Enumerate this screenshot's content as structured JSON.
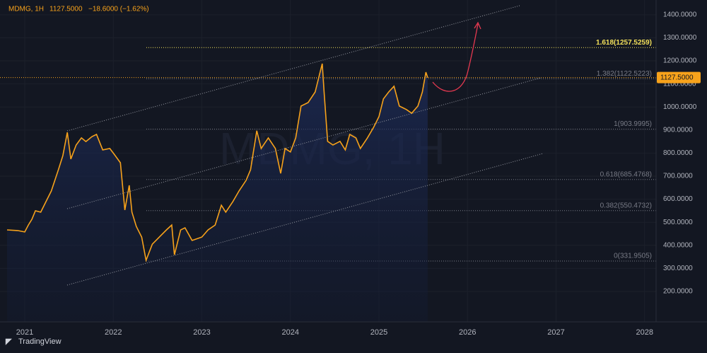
{
  "chart_data": {
    "type": "line",
    "header": {
      "symbol": "MDMG, 1H",
      "change": "−18.6000 (−1.62%)"
    },
    "watermark": "MDMG, 1H",
    "brand": "TradingView",
    "series": [
      {
        "name": "MDMG",
        "color": "#f7a21b",
        "x": [
          2020.8,
          2020.92,
          2021.0,
          2021.04,
          2021.08,
          2021.12,
          2021.18,
          2021.24,
          2021.3,
          2021.34,
          2021.38,
          2021.43,
          2021.48,
          2021.52,
          2021.58,
          2021.64,
          2021.69,
          2021.76,
          2021.81,
          2021.88,
          2021.96,
          2022.01,
          2022.08,
          2022.13,
          2022.18,
          2022.21,
          2022.26,
          2022.32,
          2022.37,
          2022.44,
          2022.52,
          2022.6,
          2022.66,
          2022.69,
          2022.76,
          2022.81,
          2022.89,
          2023.0,
          2023.07,
          2023.15,
          2023.22,
          2023.27,
          2023.35,
          2023.42,
          2023.5,
          2023.55,
          2023.62,
          2023.67,
          2023.75,
          2023.83,
          2023.89,
          2023.94,
          2024.0,
          2024.06,
          2024.12,
          2024.2,
          2024.28,
          2024.32,
          2024.36,
          2024.38,
          2024.42,
          2024.48,
          2024.56,
          2024.62,
          2024.67,
          2024.74,
          2024.79,
          2024.87,
          2024.94,
          2025.0,
          2025.05,
          2025.11,
          2025.17,
          2025.23,
          2025.31,
          2025.37,
          2025.44,
          2025.49,
          2025.53,
          2025.55
        ],
        "values": [
          467,
          464,
          458,
          488,
          513,
          550,
          544,
          590,
          636,
          682,
          728,
          789,
          890,
          774,
          835,
          866,
          850,
          872,
          881,
          814,
          820,
          795,
          758,
          553,
          660,
          544,
          482,
          436,
          335,
          405,
          436,
          467,
          488,
          359,
          467,
          476,
          421,
          436,
          467,
          488,
          574,
          544,
          590,
          636,
          682,
          728,
          897,
          820,
          866,
          820,
          712,
          820,
          805,
          866,
          1004,
          1019,
          1065,
          1127,
          1188,
          1065,
          851,
          835,
          851,
          814,
          881,
          866,
          820,
          866,
          912,
          958,
          1035,
          1065,
          1090,
          1004,
          989,
          973,
          1004,
          1065,
          1151,
          1127.5
        ]
      }
    ],
    "last_price": {
      "value": 1127.5,
      "label": "1127.5000"
    },
    "fib_levels": [
      {
        "value": 1257.5259,
        "label": "1.618(1257.5259)",
        "color": "#f2e05a"
      },
      {
        "value": 1122.5223,
        "label": "1.382(1122.5223)",
        "color": "#787b86"
      },
      {
        "value": 903.9995,
        "label": "1(903.9995)",
        "color": "#787b86"
      },
      {
        "value": 685.4768,
        "label": "0.618(685.4768)",
        "color": "#787b86"
      },
      {
        "value": 550.4732,
        "label": "0.382(550.4732)",
        "color": "#787b86"
      },
      {
        "value": 331.9505,
        "label": "0(331.9505)",
        "color": "#787b86"
      }
    ],
    "xlim": [
      2020.8,
      2028.13
    ],
    "xticks": [
      2021,
      2022,
      2023,
      2024,
      2025,
      2026,
      2027,
      2028
    ],
    "ylim": [
      68,
      1464
    ],
    "yticks": [
      {
        "value": 200,
        "label": "200.0000"
      },
      {
        "value": 300,
        "label": "300.0000"
      },
      {
        "value": 400,
        "label": "400.0000"
      },
      {
        "value": 500,
        "label": "500.0000"
      },
      {
        "value": 600,
        "label": "600.0000"
      },
      {
        "value": 700,
        "label": "700.0000"
      },
      {
        "value": 800,
        "label": "800.0000"
      },
      {
        "value": 900,
        "label": "900.0000"
      },
      {
        "value": 1000,
        "label": "1000.0000"
      },
      {
        "value": 1100,
        "label": "1100.0000"
      },
      {
        "value": 1200,
        "label": "1200.0000"
      },
      {
        "value": 1300,
        "label": "1300.0000"
      },
      {
        "value": 1400,
        "label": "1400.0000"
      }
    ],
    "grid": true
  }
}
